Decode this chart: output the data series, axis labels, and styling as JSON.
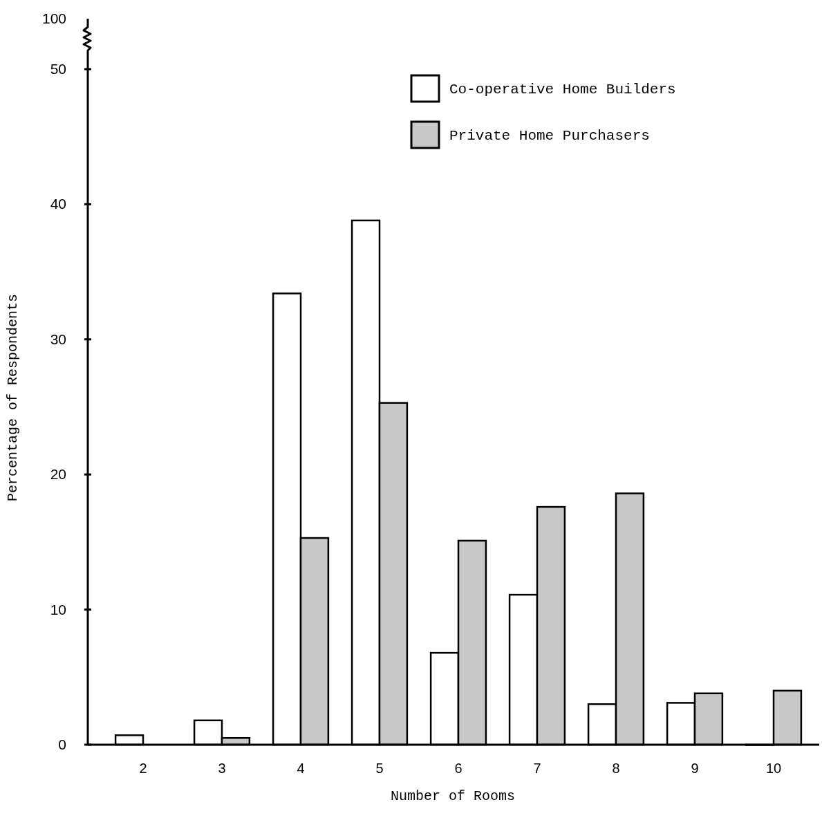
{
  "chart_data": {
    "type": "bar",
    "xlabel": "Number of Rooms",
    "ylabel": "Percentage of Respondents",
    "categories": [
      "2",
      "3",
      "4",
      "5",
      "6",
      "7",
      "8",
      "9",
      "10"
    ],
    "series": [
      {
        "name": "Co-operative Home Builders",
        "color": "#ffffff",
        "values": [
          0.7,
          1.8,
          33.4,
          38.8,
          6.8,
          11.1,
          3.0,
          3.1,
          0
        ]
      },
      {
        "name": "Private Home Purchasers",
        "color": "#c8c8c8",
        "values": [
          null,
          0.5,
          15.3,
          25.3,
          15.1,
          17.6,
          18.6,
          3.8,
          4.0
        ]
      }
    ],
    "ylim": [
      0,
      50
    ],
    "yticks": [
      0,
      10,
      20,
      30,
      40,
      50
    ],
    "annotations": [
      "100"
    ],
    "legend": "top right"
  }
}
